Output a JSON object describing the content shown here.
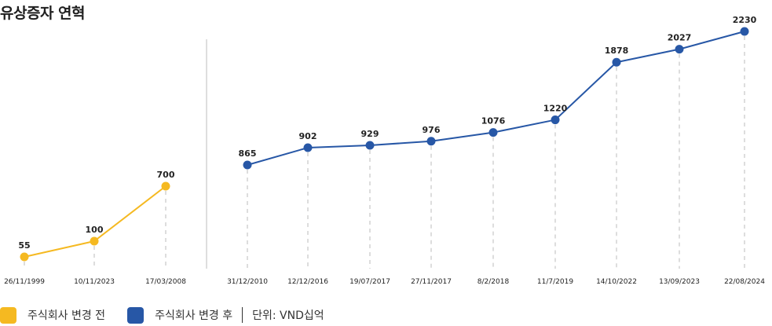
{
  "title": "유상증자 연혁",
  "colors": {
    "before": "#F5B921",
    "after": "#2757A6",
    "grid": "#BBBBBB",
    "divider": "#BDBDBD",
    "text": "#222222"
  },
  "legend": {
    "before_label": "주식회사 변경 전",
    "after_label": "주식회사 변경 후",
    "unit": "단위: VND십억"
  },
  "chart_data": {
    "type": "line",
    "title": "유상증자 연혁",
    "xlabel": "",
    "ylabel": "",
    "unit": "VND십억",
    "grid": false,
    "legend_position": "bottom-left",
    "categories": [
      "26/11/1999",
      "10/11/2023",
      "17/03/2008",
      "31/12/2010",
      "12/12/2016",
      "19/07/2017",
      "27/11/2017",
      "8/2/2018",
      "11/7/2019",
      "14/10/2022",
      "13/09/2023",
      "22/08/2024"
    ],
    "series": [
      {
        "name": "주식회사 변경 전",
        "color": "#F5B921",
        "x": [
          "26/11/1999",
          "10/11/2023",
          "17/03/2008"
        ],
        "values": [
          55,
          100,
          700
        ]
      },
      {
        "name": "주식회사 변경 후",
        "color": "#2757A6",
        "x": [
          "31/12/2010",
          "12/12/2016",
          "19/07/2017",
          "27/11/2017",
          "8/2/2018",
          "11/7/2019",
          "14/10/2022",
          "13/09/2023",
          "22/08/2024"
        ],
        "values": [
          865,
          902,
          929,
          976,
          1076,
          1220,
          1878,
          2027,
          2230
        ]
      }
    ]
  }
}
